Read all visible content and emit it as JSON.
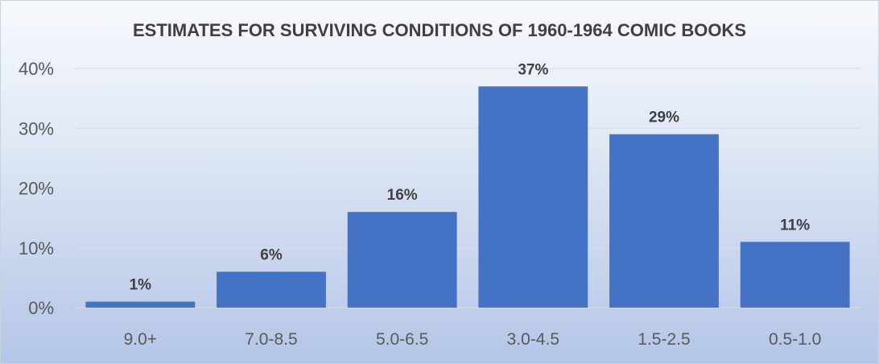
{
  "chart_data": {
    "type": "bar",
    "title": "ESTIMATES FOR SURVIVING CONDITIONS OF 1960-1964 COMIC BOOKS",
    "xlabel": "",
    "ylabel": "",
    "categories": [
      "9.0+",
      "7.0-8.5",
      "5.0-6.5",
      "3.0-4.5",
      "1.5-2.5",
      "0.5-1.0"
    ],
    "values": [
      1,
      6,
      16,
      37,
      29,
      11
    ],
    "data_labels": [
      "1%",
      "6%",
      "16%",
      "37%",
      "29%",
      "11%"
    ],
    "ylim": [
      0,
      40
    ],
    "yticks": [
      0,
      10,
      20,
      30,
      40
    ],
    "ytick_labels": [
      "0%",
      "10%",
      "20%",
      "30%",
      "40%"
    ],
    "grid": true,
    "legend": "none",
    "bar_color": "#4472c4"
  }
}
